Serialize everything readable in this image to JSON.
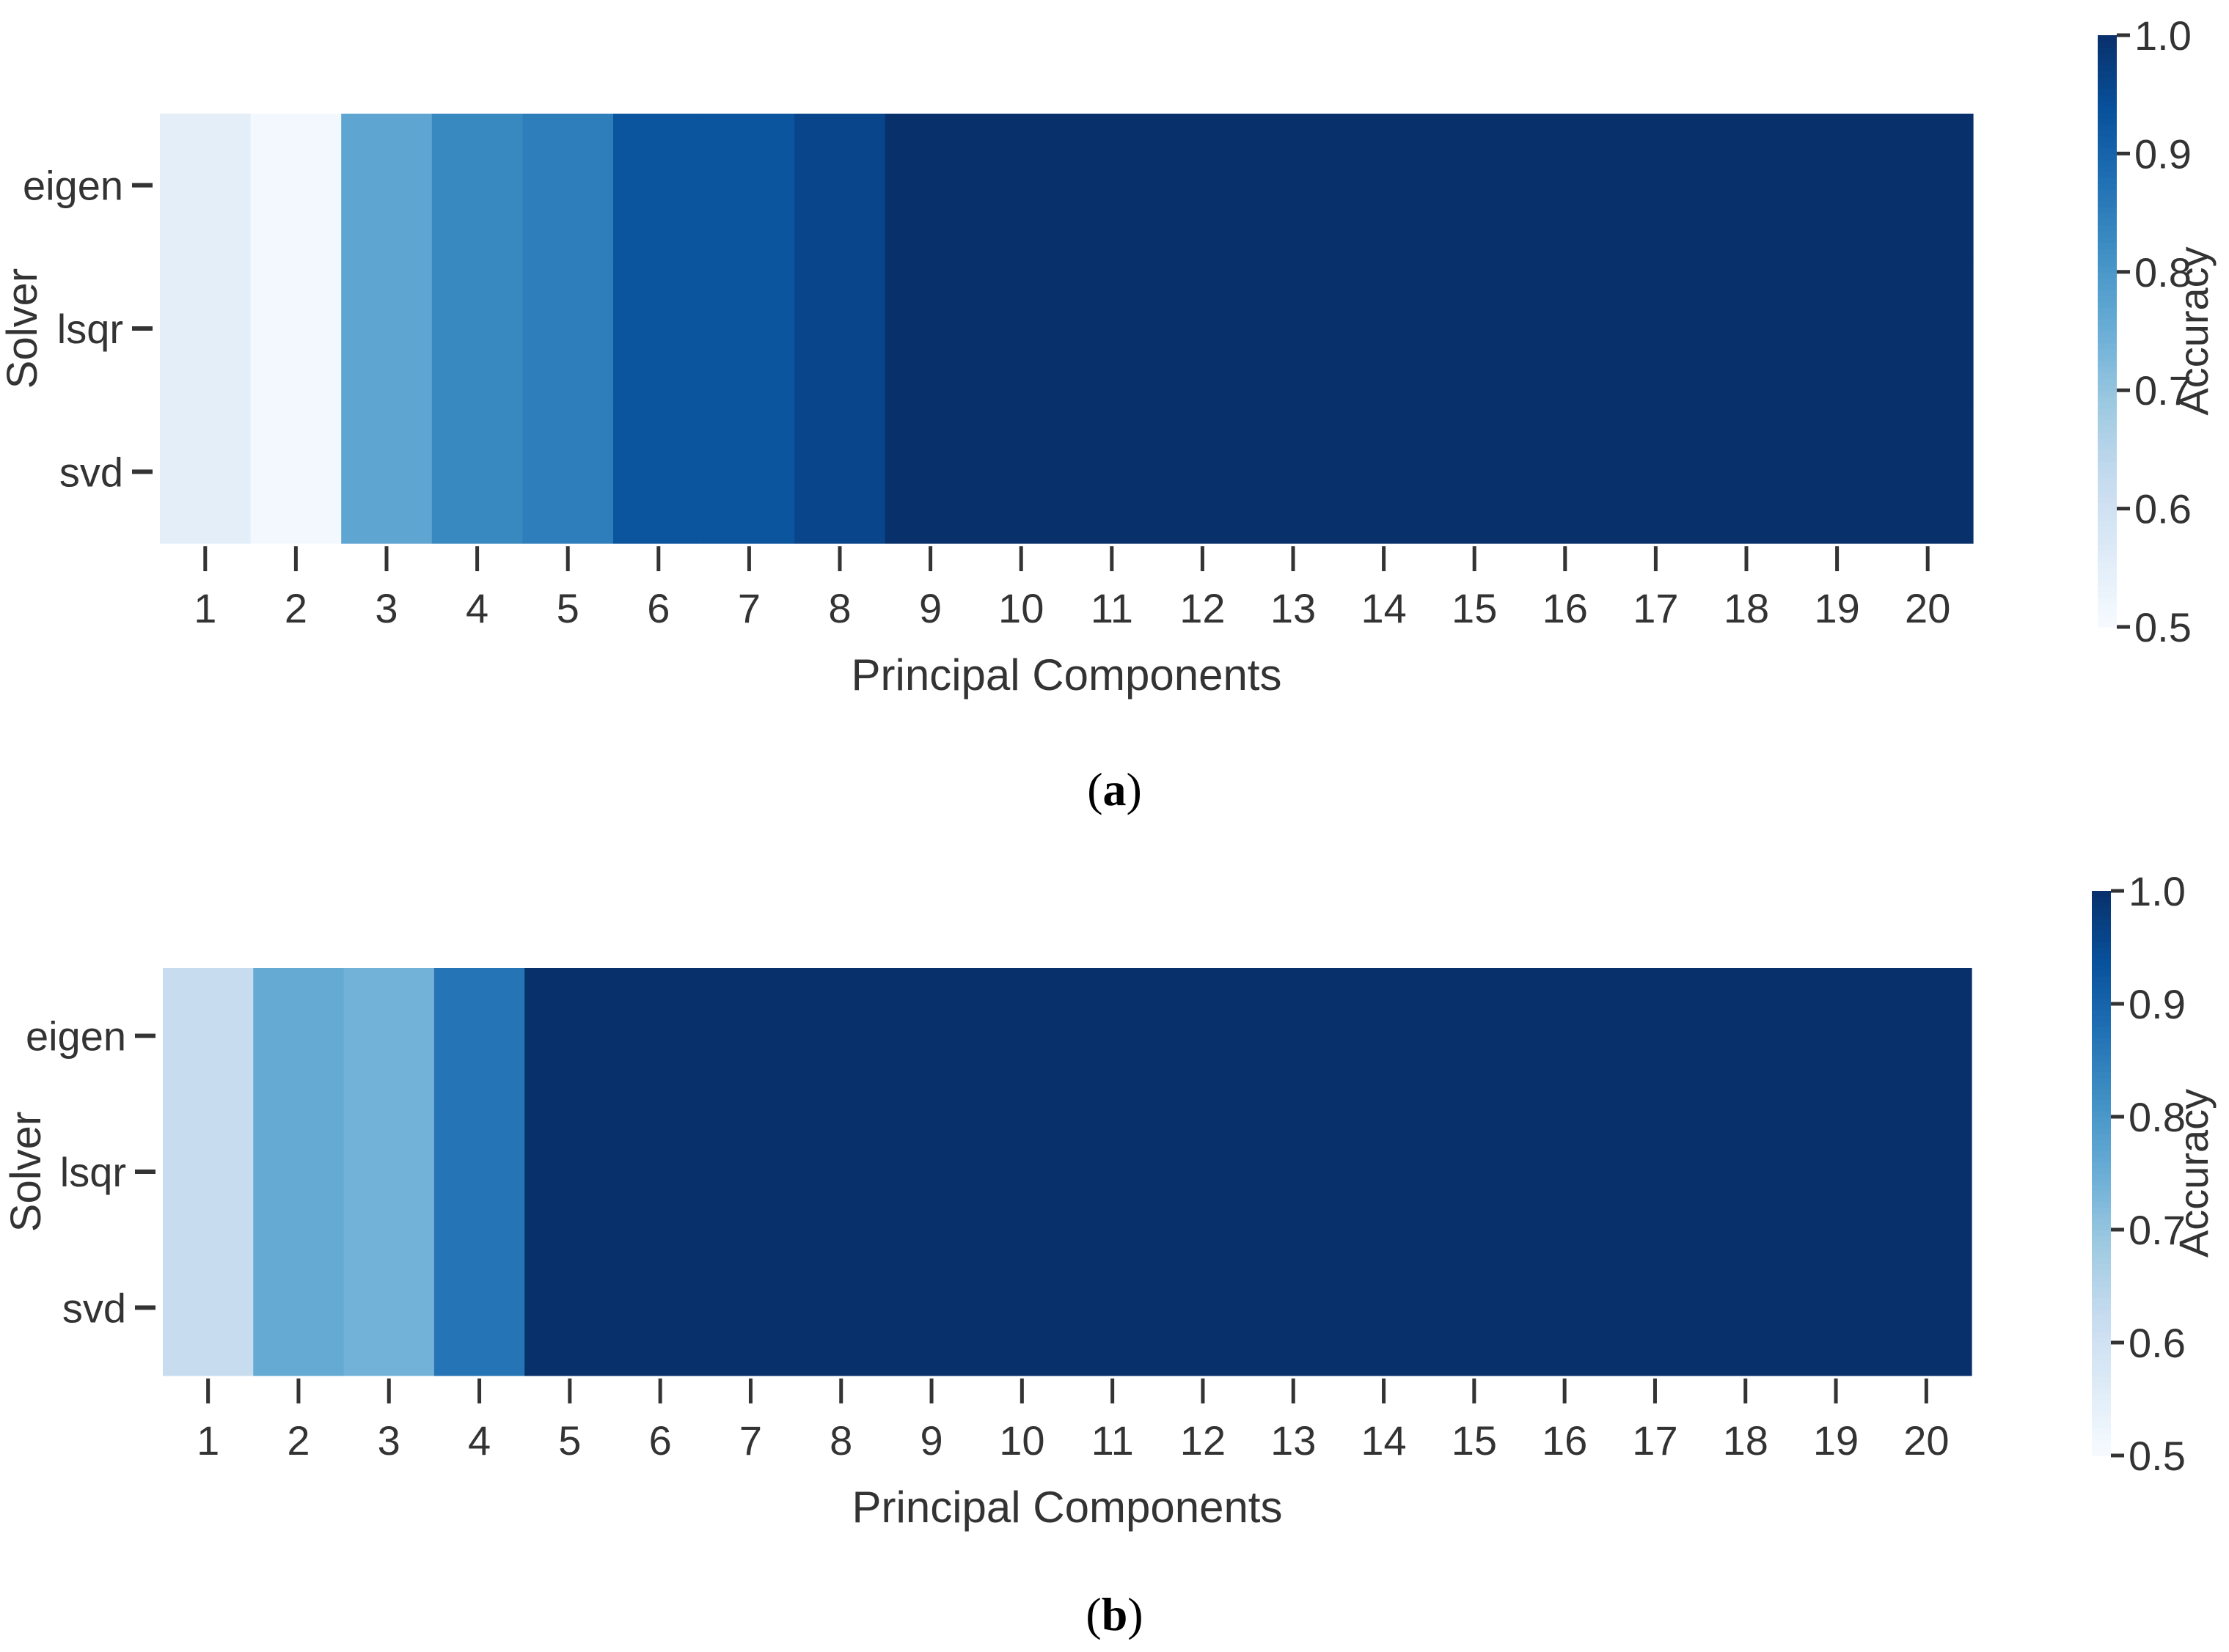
{
  "chart_data": [
    {
      "type": "heatmap",
      "panel_label": "a",
      "xlabel": "Principal Components",
      "ylabel": "Solver",
      "x": [
        1,
        2,
        3,
        4,
        5,
        6,
        7,
        8,
        9,
        10,
        11,
        12,
        13,
        14,
        15,
        16,
        17,
        18,
        19,
        20
      ],
      "y": [
        "eigen",
        "lsqr",
        "svd"
      ],
      "values": [
        [
          0.55,
          0.51,
          0.77,
          0.83,
          0.85,
          0.93,
          0.93,
          0.96,
          1.0,
          1.0,
          1.0,
          1.0,
          1.0,
          1.0,
          1.0,
          1.0,
          1.0,
          1.0,
          1.0,
          1.0
        ],
        [
          0.55,
          0.51,
          0.77,
          0.83,
          0.85,
          0.93,
          0.93,
          0.96,
          1.0,
          1.0,
          1.0,
          1.0,
          1.0,
          1.0,
          1.0,
          1.0,
          1.0,
          1.0,
          1.0,
          1.0
        ],
        [
          0.55,
          0.51,
          0.77,
          0.83,
          0.85,
          0.93,
          0.93,
          0.96,
          1.0,
          1.0,
          1.0,
          1.0,
          1.0,
          1.0,
          1.0,
          1.0,
          1.0,
          1.0,
          1.0,
          1.0
        ]
      ],
      "colorbar": {
        "label": "Accuracy",
        "range": [
          0.5,
          1.0
        ],
        "ticks": [
          "0.5",
          "0.6",
          "0.7",
          "0.8",
          "0.9",
          "1.0"
        ]
      },
      "colormap": "Blues"
    },
    {
      "type": "heatmap",
      "panel_label": "b",
      "xlabel": "Principal Components",
      "ylabel": "Solver",
      "x": [
        1,
        2,
        3,
        4,
        5,
        6,
        7,
        8,
        9,
        10,
        11,
        12,
        13,
        14,
        15,
        16,
        17,
        18,
        19,
        20
      ],
      "y": [
        "eigen",
        "lsqr",
        "svd"
      ],
      "values": [
        [
          0.62,
          0.76,
          0.74,
          0.87,
          1.0,
          1.0,
          1.0,
          1.0,
          1.0,
          1.0,
          1.0,
          1.0,
          1.0,
          1.0,
          1.0,
          1.0,
          1.0,
          1.0,
          1.0,
          1.0
        ],
        [
          0.62,
          0.76,
          0.74,
          0.87,
          1.0,
          1.0,
          1.0,
          1.0,
          1.0,
          1.0,
          1.0,
          1.0,
          1.0,
          1.0,
          1.0,
          1.0,
          1.0,
          1.0,
          1.0,
          1.0
        ],
        [
          0.62,
          0.76,
          0.74,
          0.87,
          1.0,
          1.0,
          1.0,
          1.0,
          1.0,
          1.0,
          1.0,
          1.0,
          1.0,
          1.0,
          1.0,
          1.0,
          1.0,
          1.0,
          1.0,
          1.0
        ]
      ],
      "colorbar": {
        "label": "Accuracy",
        "range": [
          0.5,
          1.0
        ],
        "ticks": [
          "0.5",
          "0.6",
          "0.7",
          "0.8",
          "0.9",
          "1.0"
        ]
      },
      "colormap": "Blues"
    }
  ],
  "captions": {
    "a": "a",
    "b": "b"
  }
}
